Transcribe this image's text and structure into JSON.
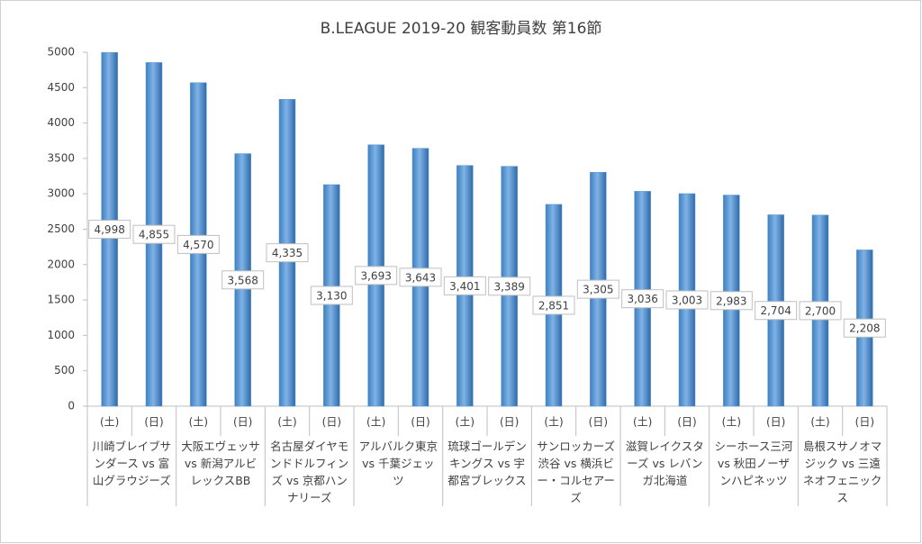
{
  "chart_data": {
    "type": "bar",
    "title": "B.LEAGUE 2019-20 観客動員数 第16節",
    "categories": [
      "(土)",
      "(日)",
      "(土)",
      "(日)",
      "(土)",
      "(日)",
      "(土)",
      "(日)",
      "(土)",
      "(日)",
      "(土)",
      "(日)",
      "(土)",
      "(日)",
      "(土)",
      "(日)",
      "(土)",
      "(日)"
    ],
    "groups": [
      "川崎ブレイブサンダース vs 富山グラウジーズ",
      "大阪エヴェッサ vs 新潟アルビレックスBB",
      "名古屋ダイヤモンドドルフィンズ vs 京都ハンナリーズ",
      "アルバルク東京 vs 千葉ジェッツ",
      "琉球ゴールデンキングス vs 宇都宮ブレックス",
      "サンロッカーズ渋谷 vs 横浜ビー・コルセアーズ",
      "滋賀レイクスターズ vs レバンガ北海道",
      "シーホース三河 vs 秋田ノーザンハピネッツ",
      "島根スサノオマジック vs 三遠ネオフェニックス"
    ],
    "values": [
      4998,
      4855,
      4570,
      3568,
      4335,
      3130,
      3693,
      3643,
      3401,
      3389,
      2851,
      3305,
      3036,
      3003,
      2983,
      2704,
      2700,
      2208
    ],
    "value_labels": [
      "4,998",
      "4,855",
      "4,570",
      "3,568",
      "4,335",
      "3,130",
      "3,693",
      "3,643",
      "3,401",
      "3,389",
      "2,851",
      "3,305",
      "3,036",
      "3,003",
      "2,983",
      "2,704",
      "2,700",
      "2,208"
    ],
    "color": "#5b9bd5",
    "ylim": [
      0,
      5000
    ],
    "yticks": [
      0,
      500,
      1000,
      1500,
      2000,
      2500,
      3000,
      3500,
      4000,
      4500,
      5000
    ],
    "grid": false
  }
}
